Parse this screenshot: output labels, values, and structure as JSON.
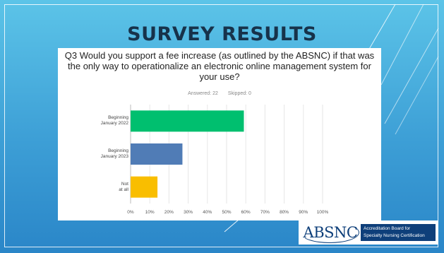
{
  "slide": {
    "title": "SURVEY RESULTS",
    "colors": {
      "background": "#4fb3e3",
      "title": "#17324a"
    }
  },
  "survey": {
    "question": "Q3 Would you support a fee increase (as outlined by the ABSNC) if that was the only way to operationalize an electronic online management system for your use?",
    "answered": "Answered: 22",
    "skipped": "Skipped: 0"
  },
  "chart_data": {
    "type": "bar",
    "orientation": "horizontal",
    "categories": [
      "Beginning January 2022",
      "Beginning January 2023",
      "Not at all"
    ],
    "values": [
      59,
      27,
      14
    ],
    "unit": "%",
    "xlim": [
      0,
      100
    ],
    "ticks": [
      "0%",
      "10%",
      "20%",
      "30%",
      "40%",
      "50%",
      "60%",
      "70%",
      "80%",
      "90%",
      "100%"
    ],
    "grid": true,
    "colors": [
      "#00bf6f",
      "#507cb6",
      "#f9be00"
    ]
  },
  "logo": {
    "mark": "ABSNC",
    "line1": "Accreditation Board for",
    "line2": "Specialty Nursing Certification",
    "color": "#0e3f7a"
  }
}
